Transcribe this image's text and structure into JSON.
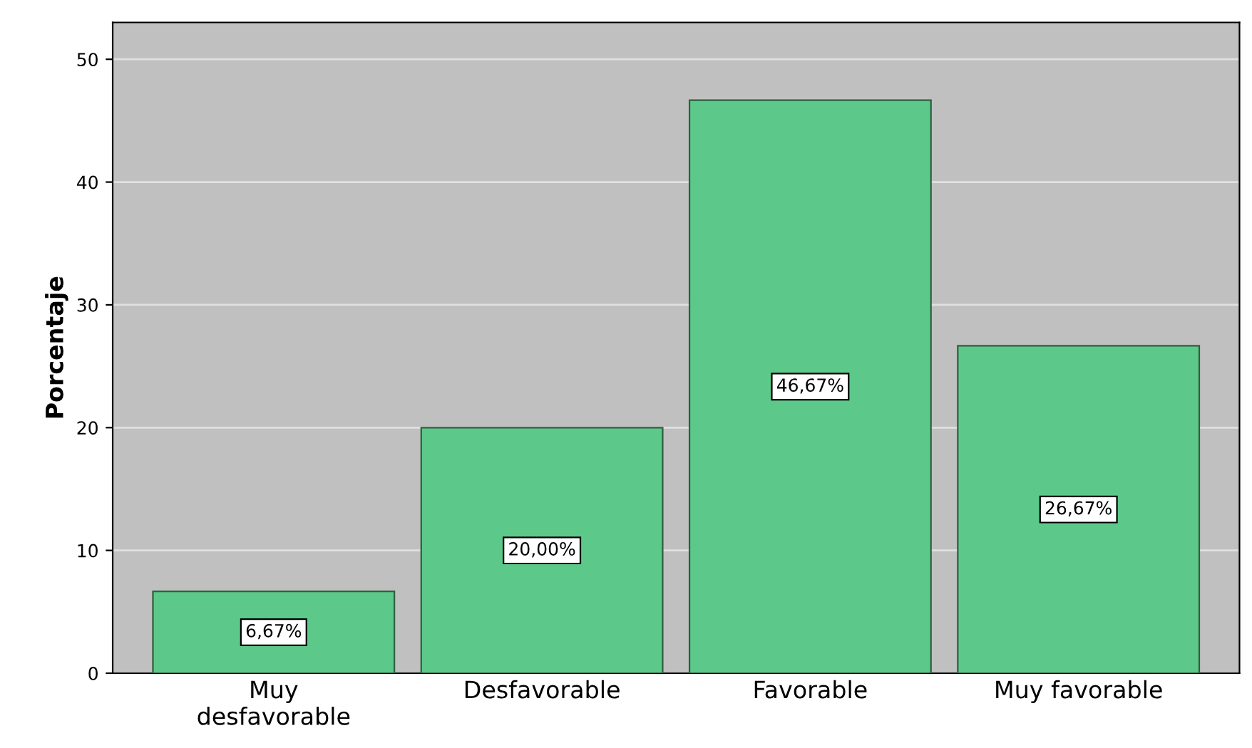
{
  "chart_data": {
    "type": "bar",
    "ylabel": "Porcentaje",
    "categories": [
      "Muy\ndesfavorable",
      "Desfavorable",
      "Favorable",
      "Muy favorable"
    ],
    "values": [
      6.67,
      20.0,
      46.67,
      26.67
    ],
    "value_labels": [
      "6,67%",
      "20,00%",
      "46,67%",
      "26,67%"
    ],
    "color": "#5cc98a",
    "ylim": [
      0,
      53
    ],
    "yticks": [
      0,
      10,
      20,
      30,
      40,
      50
    ],
    "grid": "y"
  }
}
